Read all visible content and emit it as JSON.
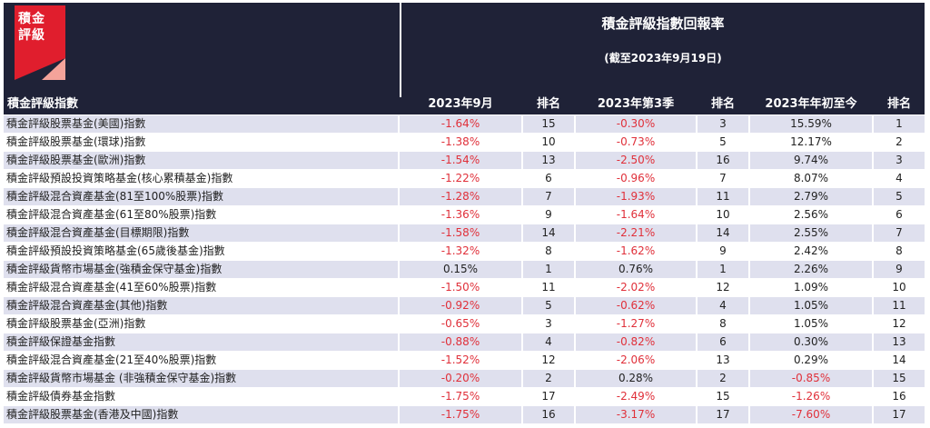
{
  "logo": {
    "text_line1": "積金",
    "text_line2": "評級",
    "red": "#e01e2d",
    "pink": "#f4a39a"
  },
  "header": {
    "title": "積金評級指數回報率",
    "subtitle": "(截至2023年9月19日)",
    "columns": [
      "積金評級指數",
      "2023年9月",
      "排名",
      "2023年第3季",
      "排名",
      "2023年年初至今",
      "排名"
    ]
  },
  "colors": {
    "header_bg": "#1f2237",
    "row_stripe": "#dfe0ee",
    "negative": "#e0303a"
  },
  "rows": [
    {
      "name": "積金評級股票基金(美國)指數",
      "sep": "-1.64%",
      "sep_rank": "15",
      "q3": "-0.30%",
      "q3_rank": "3",
      "ytd": "15.59%",
      "ytd_rank": "1"
    },
    {
      "name": "積金評級股票基金(環球)指數",
      "sep": "-1.38%",
      "sep_rank": "10",
      "q3": "-0.73%",
      "q3_rank": "5",
      "ytd": "12.17%",
      "ytd_rank": "2"
    },
    {
      "name": "積金評級股票基金(歐洲)指數",
      "sep": "-1.54%",
      "sep_rank": "13",
      "q3": "-2.50%",
      "q3_rank": "16",
      "ytd": "9.74%",
      "ytd_rank": "3"
    },
    {
      "name": "積金評級預設投資策略基金(核心累積基金)指數",
      "sep": "-1.22%",
      "sep_rank": "6",
      "q3": "-0.96%",
      "q3_rank": "7",
      "ytd": "8.07%",
      "ytd_rank": "4"
    },
    {
      "name": "積金評級混合資產基金(81至100%股票)指數",
      "sep": "-1.28%",
      "sep_rank": "7",
      "q3": "-1.93%",
      "q3_rank": "11",
      "ytd": "2.79%",
      "ytd_rank": "5"
    },
    {
      "name": "積金評級混合資產基金(61至80%股票)指數",
      "sep": "-1.36%",
      "sep_rank": "9",
      "q3": "-1.64%",
      "q3_rank": "10",
      "ytd": "2.56%",
      "ytd_rank": "6"
    },
    {
      "name": "積金評級混合資產基金(目標期限)指數",
      "sep": "-1.58%",
      "sep_rank": "14",
      "q3": "-2.21%",
      "q3_rank": "14",
      "ytd": "2.55%",
      "ytd_rank": "7"
    },
    {
      "name": "積金評級預設投資策略基金(65歲後基金)指數",
      "sep": "-1.32%",
      "sep_rank": "8",
      "q3": "-1.62%",
      "q3_rank": "9",
      "ytd": "2.42%",
      "ytd_rank": "8"
    },
    {
      "name": "積金評級貨幣市場基金(強積金保守基金)指數",
      "sep": "0.15%",
      "sep_rank": "1",
      "q3": "0.76%",
      "q3_rank": "1",
      "ytd": "2.26%",
      "ytd_rank": "9"
    },
    {
      "name": "積金評級混合資產基金(41至60%股票)指數",
      "sep": "-1.50%",
      "sep_rank": "11",
      "q3": "-2.02%",
      "q3_rank": "12",
      "ytd": "1.09%",
      "ytd_rank": "10"
    },
    {
      "name": "積金評級混合資產基金(其他)指數",
      "sep": "-0.92%",
      "sep_rank": "5",
      "q3": "-0.62%",
      "q3_rank": "4",
      "ytd": "1.05%",
      "ytd_rank": "11"
    },
    {
      "name": "積金評級股票基金(亞洲)指數",
      "sep": "-0.65%",
      "sep_rank": "3",
      "q3": "-1.27%",
      "q3_rank": "8",
      "ytd": "1.05%",
      "ytd_rank": "12"
    },
    {
      "name": "積金評級保證基金指數",
      "sep": "-0.88%",
      "sep_rank": "4",
      "q3": "-0.82%",
      "q3_rank": "6",
      "ytd": "0.30%",
      "ytd_rank": "13"
    },
    {
      "name": "積金評級混合資產基金(21至40%股票)指數",
      "sep": "-1.52%",
      "sep_rank": "12",
      "q3": "-2.06%",
      "q3_rank": "13",
      "ytd": "0.29%",
      "ytd_rank": "14"
    },
    {
      "name": "積金評級貨幣市場基金 (非強積金保守基金)指數",
      "sep": "-0.20%",
      "sep_rank": "2",
      "q3": "0.28%",
      "q3_rank": "2",
      "ytd": "-0.85%",
      "ytd_rank": "15"
    },
    {
      "name": "積金評級債券基金指數",
      "sep": "-1.75%",
      "sep_rank": "17",
      "q3": "-2.49%",
      "q3_rank": "15",
      "ytd": "-1.26%",
      "ytd_rank": "16"
    },
    {
      "name": "積金評級股票基金(香港及中國)指數",
      "sep": "-1.75%",
      "sep_rank": "16",
      "q3": "-3.17%",
      "q3_rank": "17",
      "ytd": "-7.60%",
      "ytd_rank": "17"
    }
  ]
}
